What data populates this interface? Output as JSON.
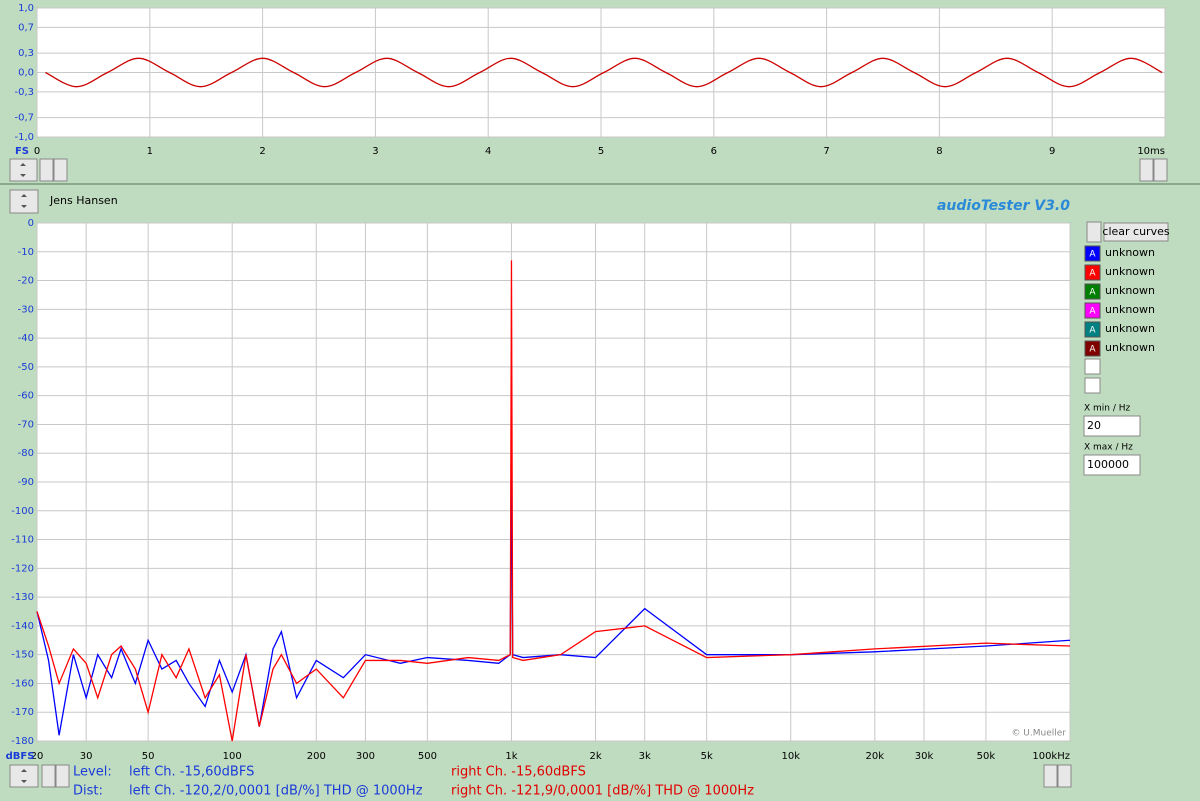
{
  "chart_data": [
    {
      "type": "line",
      "y_axis_label": "FS",
      "grid": true,
      "x": [
        0.075,
        0.35,
        0.625,
        0.9,
        1.175,
        1.45,
        1.725,
        2.0,
        2.275,
        2.55,
        2.825,
        3.1,
        3.375,
        3.65,
        3.925,
        4.2,
        4.475,
        4.75,
        5.025,
        5.3,
        5.575,
        5.85,
        6.125,
        6.4,
        6.675,
        6.95,
        7.225,
        7.5,
        7.775,
        8.05,
        8.325,
        8.6,
        8.875,
        9.15,
        9.425,
        9.7,
        9.975
      ],
      "series": [
        {
          "color": "#cc0000",
          "values": [
            0,
            -0.22,
            0,
            0.22,
            0,
            -0.22,
            0,
            0.22,
            0,
            -0.22,
            0,
            0.22,
            0,
            -0.22,
            0,
            0.22,
            0,
            -0.22,
            0,
            0.22,
            0,
            -0.22,
            0,
            0.22,
            0,
            -0.22,
            0,
            0.22,
            0,
            -0.22,
            0,
            0.22,
            0,
            -0.22,
            0,
            0.22,
            0
          ]
        }
      ],
      "xlim": [
        0,
        10
      ],
      "ylim": [
        -1,
        1
      ],
      "xticks": [
        0,
        1,
        2,
        3,
        4,
        5,
        6,
        7,
        8,
        9,
        {
          "value": 10,
          "label": "10ms"
        }
      ],
      "yticks": [
        {
          "value": 1,
          "label": "1,0"
        },
        {
          "value": 0.7,
          "label": "0,7"
        },
        {
          "value": 0.3,
          "label": "0,3"
        },
        {
          "value": 0,
          "label": "0,0"
        },
        {
          "value": -0.3,
          "label": "-0,3"
        },
        {
          "value": -0.7,
          "label": "-0,7"
        },
        {
          "value": -1,
          "label": "-1,0"
        }
      ]
    },
    {
      "type": "line",
      "log_x": true,
      "y_axis_label": "dBFS",
      "grid": true,
      "x": [
        20,
        22,
        24,
        27,
        30,
        33,
        37,
        40,
        45,
        50,
        56,
        63,
        70,
        80,
        90,
        100,
        112,
        125,
        140,
        150,
        170,
        200,
        250,
        300,
        400,
        500,
        700,
        900,
        990,
        1000,
        1010,
        1100,
        1500,
        2000,
        3000,
        5000,
        10000,
        20000,
        50000,
        100000
      ],
      "series": [
        {
          "color": "#0000ff",
          "values": [
            -135,
            -152,
            -178,
            -150,
            -165,
            -150,
            -158,
            -148,
            -160,
            -145,
            -155,
            -152,
            -160,
            -168,
            -152,
            -163,
            -150,
            -175,
            -148,
            -142,
            -165,
            -152,
            -158,
            -150,
            -153,
            -151,
            -152,
            -153,
            -150,
            -80,
            -150,
            -151,
            -150,
            -151,
            -134,
            -150,
            -150,
            -149,
            -147,
            -145
          ]
        },
        {
          "color": "#ff0000",
          "values": [
            -135,
            -147,
            -160,
            -148,
            -153,
            -165,
            -150,
            -147,
            -155,
            -170,
            -150,
            -158,
            -148,
            -165,
            -157,
            -180,
            -150,
            -175,
            -155,
            -150,
            -160,
            -155,
            -165,
            -152,
            -152,
            -153,
            -151,
            -152,
            -150,
            -13,
            -151,
            -152,
            -150,
            -142,
            -140,
            -151,
            -150,
            -148,
            -146,
            -147
          ]
        }
      ],
      "xlim": [
        20,
        100000
      ],
      "ylim": [
        -180,
        0
      ],
      "xticks": [
        20,
        30,
        50,
        100,
        200,
        300,
        500,
        {
          "value": 1000,
          "label": "1k"
        },
        {
          "value": 2000,
          "label": "2k"
        },
        {
          "value": 3000,
          "label": "3k"
        },
        {
          "value": 5000,
          "label": "5k"
        },
        {
          "value": 10000,
          "label": "10k"
        },
        {
          "value": 20000,
          "label": "20k"
        },
        {
          "value": 30000,
          "label": "30k"
        },
        {
          "value": 50000,
          "label": "50k"
        },
        {
          "value": 100000,
          "label": "100kHz"
        }
      ],
      "yticks": [
        0,
        -10,
        -20,
        -30,
        -40,
        -50,
        -60,
        -70,
        -80,
        -90,
        -100,
        -110,
        -120,
        -130,
        -140,
        -150,
        -160,
        -170,
        -180
      ]
    }
  ],
  "author": "Jens Hansen",
  "app_title": "audioTester  V3.0",
  "clear_button": "clear curves",
  "legend": [
    {
      "label": "A",
      "text": "unknown",
      "color": "#0000ff"
    },
    {
      "label": "A",
      "text": "unknown",
      "color": "#ff0000"
    },
    {
      "label": "A",
      "text": "unknown",
      "color": "#008000"
    },
    {
      "label": "A",
      "text": "unknown",
      "color": "#ff00ff"
    },
    {
      "label": "A",
      "text": "unknown",
      "color": "#008080"
    },
    {
      "label": "A",
      "text": "unknown",
      "color": "#800000"
    }
  ],
  "x_min_label": "X min / Hz",
  "x_min": 20,
  "x_max_label": "X max / Hz",
  "x_max": 100000,
  "copyright": "© U.Mueller",
  "status": {
    "level_label": "Level:",
    "level_left": "left Ch. -15,60dBFS",
    "level_right": "right Ch. -15,60dBFS",
    "dist_label": "Dist:",
    "dist_left": "left Ch. -120,2/0,0001 [dB/%] THD @ 1000Hz",
    "dist_right": "right Ch. -121,9/0,0001 [dB/%] THD @ 1000Hz"
  }
}
